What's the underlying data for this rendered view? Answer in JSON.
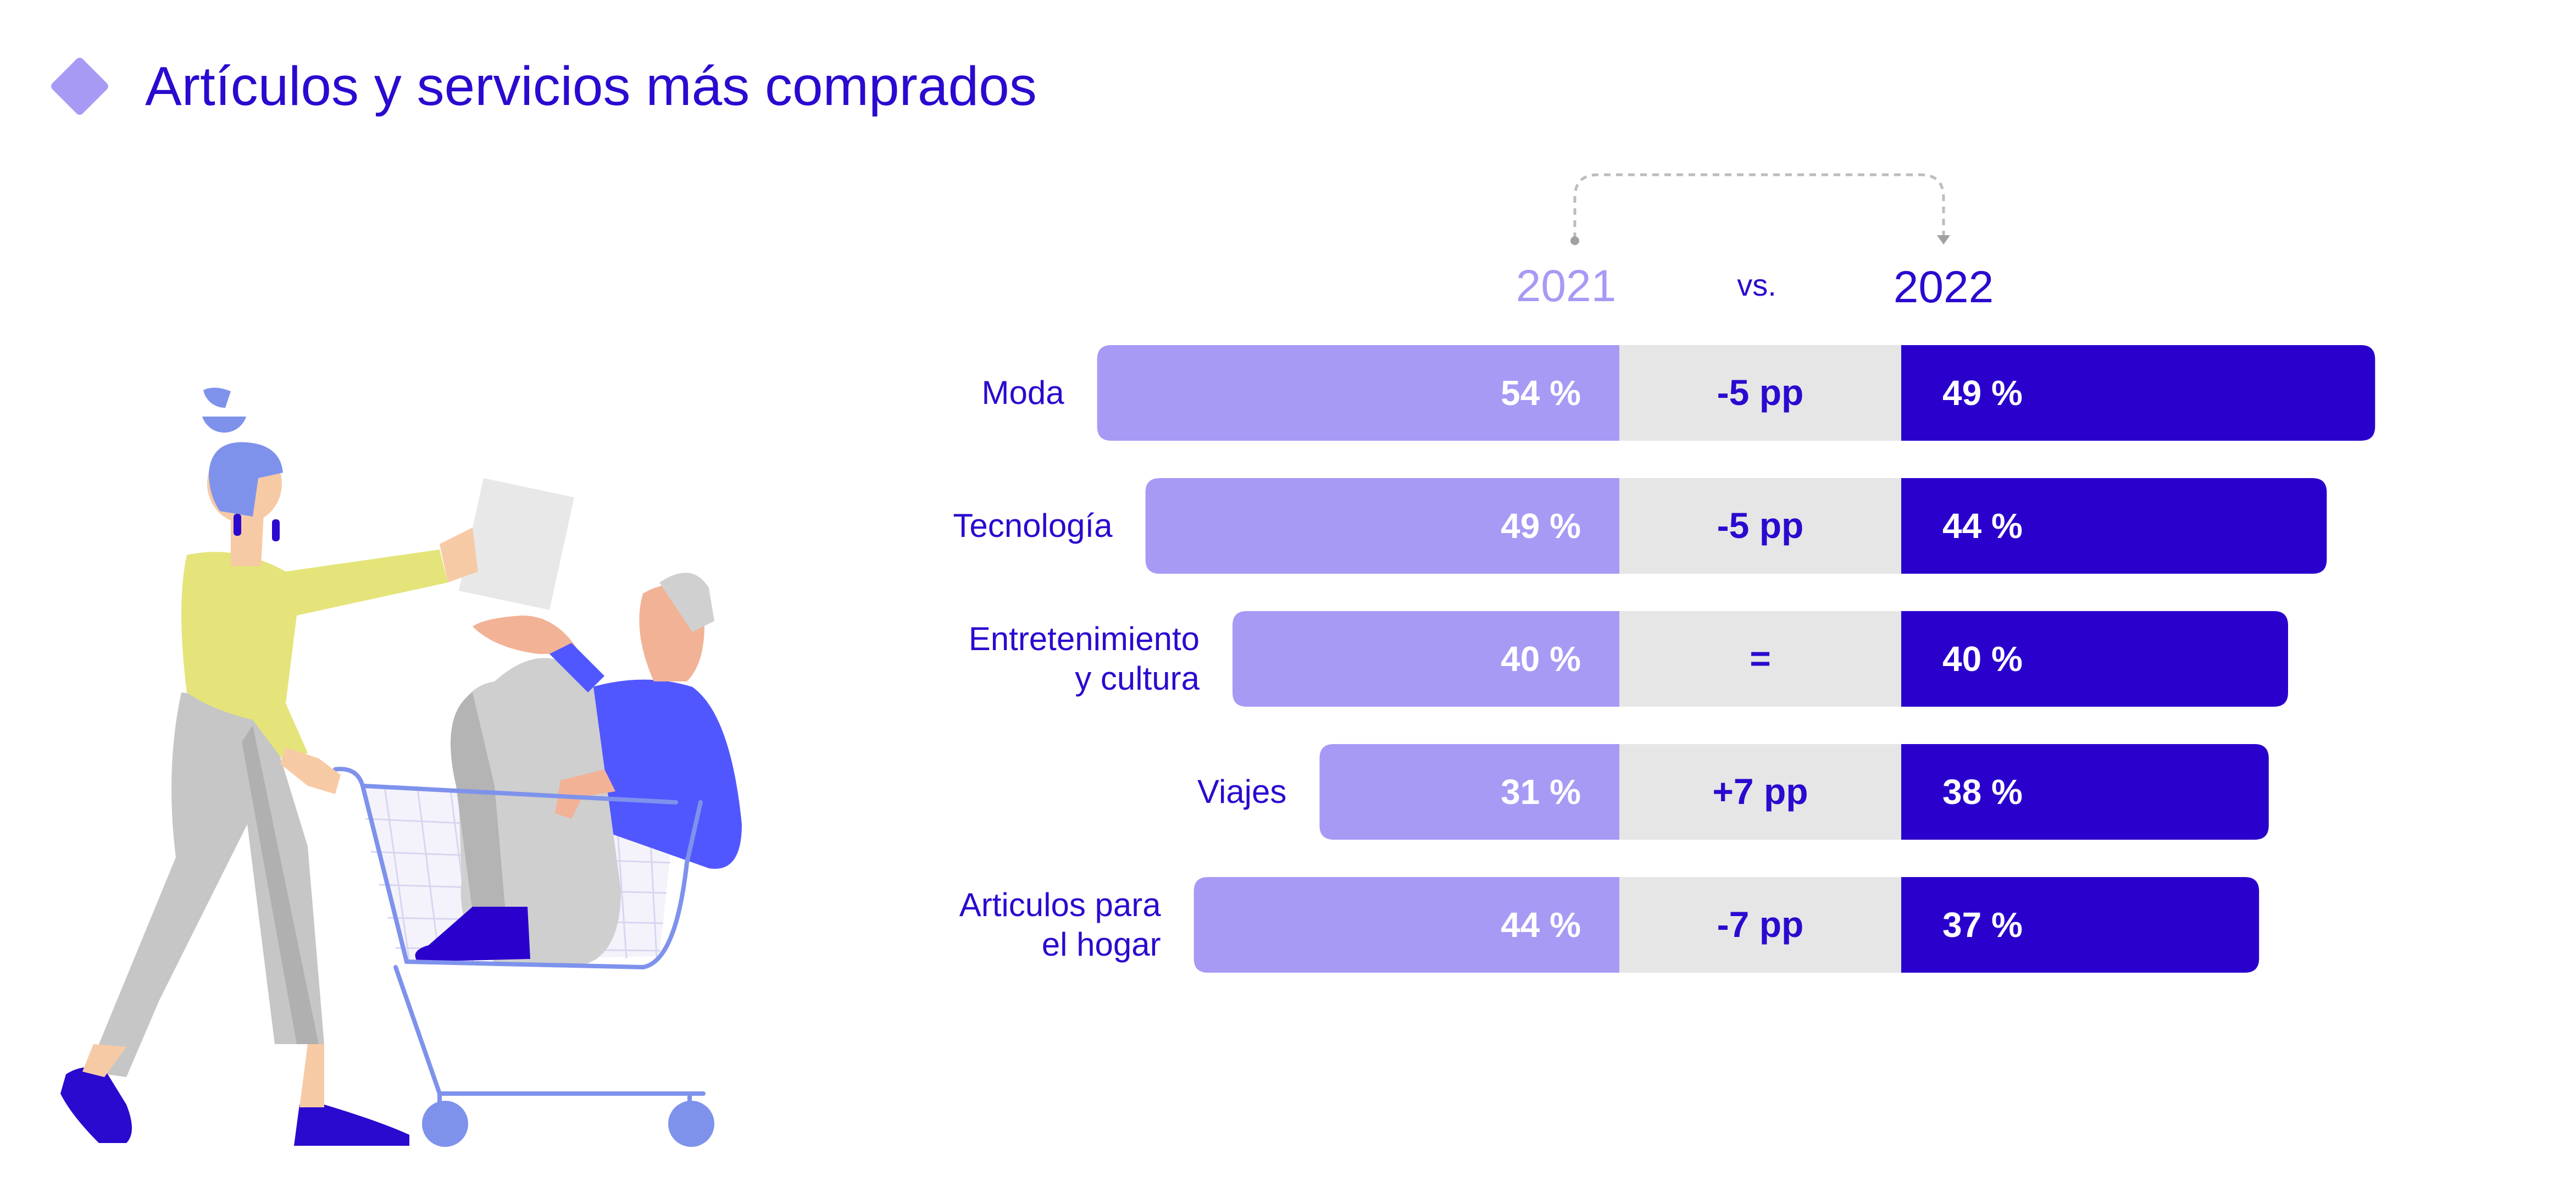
{
  "title": "Artículos y servicios más comprados",
  "colors": {
    "title": "#2a0acf",
    "bar2021": "#a69af5",
    "bar2022": "#2a00cc",
    "diff": "#e6e6e6",
    "diamond": "#a69af5"
  },
  "chart_data": {
    "type": "bar",
    "orientation": "horizontal-comparison",
    "header": {
      "year1": "2021",
      "vs": "vs.",
      "year2": "2022"
    },
    "categories": [
      "Moda",
      "Tecnología",
      "Entretenimiento y cultura",
      "Viajes",
      "Articulos para el hogar"
    ],
    "category_lines": [
      [
        "Moda"
      ],
      [
        "Tecnología"
      ],
      [
        "Entretenimiento",
        "y cultura"
      ],
      [
        "Viajes"
      ],
      [
        "Articulos para",
        "el hogar"
      ]
    ],
    "series": [
      {
        "name": "2021",
        "values": [
          54,
          49,
          40,
          31,
          44
        ]
      },
      {
        "name": "2022",
        "values": [
          49,
          44,
          40,
          38,
          37
        ]
      }
    ],
    "value_labels_2021": [
      "54 %",
      "49 %",
      "40 %",
      "31 %",
      "44 %"
    ],
    "value_labels_2022": [
      "49 %",
      "44 %",
      "40 %",
      "38 %",
      "37 %"
    ],
    "differences": [
      "-5 pp",
      "-5 pp",
      "=",
      "+7 pp",
      "-7 pp"
    ],
    "unit": "%"
  }
}
